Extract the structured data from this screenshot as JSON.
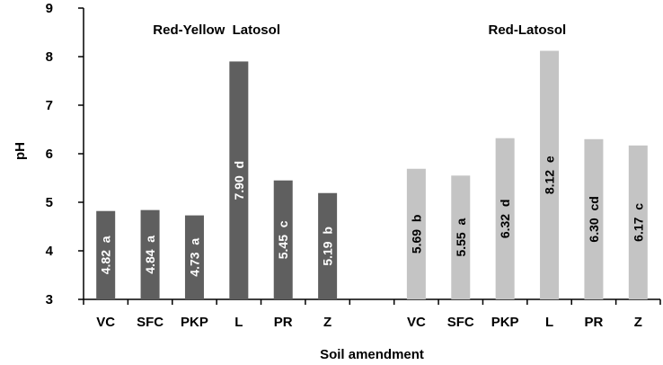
{
  "chart_data": {
    "type": "bar",
    "ylabel": "pH",
    "xlabel": "Soil amendment",
    "ylim": [
      3,
      9
    ],
    "yticks": [
      "3",
      "4",
      "5",
      "6",
      "7",
      "8",
      "9"
    ],
    "grid": false,
    "groups": [
      {
        "name": "Red-Yellow  Latosol",
        "color": "#5f5f5f",
        "label_color": "#ffffff",
        "categories": [
          "VC",
          "SFC",
          "PKP",
          "L",
          "PR",
          "Z"
        ],
        "values": [
          4.82,
          4.84,
          4.73,
          7.9,
          5.45,
          5.19
        ],
        "labels": [
          "4.82  a",
          "4.84  a",
          "4.73  a",
          "7.90  d",
          "5.45  c",
          "5.19  b"
        ]
      },
      {
        "name": "Red-Latosol",
        "color": "#c4c4c4",
        "label_color": "#000000",
        "categories": [
          "VC",
          "SFC",
          "PKP",
          "L",
          "PR",
          "Z"
        ],
        "values": [
          5.69,
          5.55,
          6.32,
          8.12,
          6.3,
          6.17
        ],
        "labels": [
          "5.69  b",
          "5.55  a",
          "6.32  d",
          "8.12  e",
          "6.30  cd",
          "6.17  c"
        ]
      }
    ]
  }
}
